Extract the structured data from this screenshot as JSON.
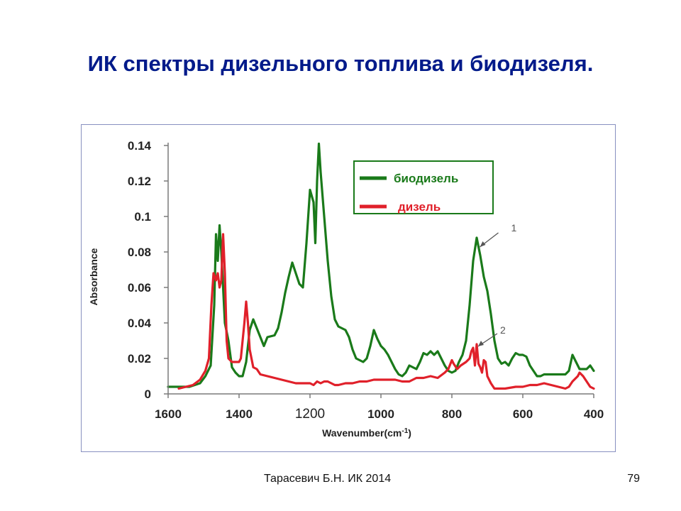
{
  "slide": {
    "title": "ИК спектры дизельного топлива и биодизеля.",
    "footer": "Тарасевич Б.Н. ИК 2014",
    "page_number": "79"
  },
  "colors": {
    "title": "#001a8a",
    "biodiesel": "#1a7a1a",
    "diesel": "#e0202a",
    "frame": "#8890c0",
    "highlight_tick": "#2244aa"
  },
  "chart_data": {
    "type": "line",
    "xlabel": "Wavenumber(cm",
    "xlabel_sup": "-1",
    "xlabel_end": ")",
    "ylabel": "Absorbance",
    "xlim": [
      1600,
      400
    ],
    "ylim": [
      0,
      0.14
    ],
    "x_reversed": true,
    "xticks": [
      1600,
      1400,
      1200,
      1000,
      800,
      600,
      400
    ],
    "xtick_labels": [
      "1600",
      "1400",
      "1200",
      "1000",
      "800",
      "600",
      "400"
    ],
    "highlighted_xtick": "1200",
    "yticks": [
      0,
      0.02,
      0.04,
      0.06,
      0.08,
      0.1,
      0.12,
      0.14
    ],
    "ytick_labels": [
      "0",
      "0.02",
      "0.04",
      "0.06",
      "0.08",
      "0.1",
      "0.12",
      "0.14"
    ],
    "legend_position": "top-right",
    "series": [
      {
        "name": "биодизель",
        "color": "#1a7a1a",
        "annotation": "1",
        "points": [
          [
            1600,
            0.004
          ],
          [
            1580,
            0.004
          ],
          [
            1540,
            0.004
          ],
          [
            1510,
            0.006
          ],
          [
            1495,
            0.01
          ],
          [
            1480,
            0.016
          ],
          [
            1470,
            0.05
          ],
          [
            1465,
            0.09
          ],
          [
            1460,
            0.075
          ],
          [
            1455,
            0.095
          ],
          [
            1450,
            0.08
          ],
          [
            1445,
            0.06
          ],
          [
            1440,
            0.04
          ],
          [
            1430,
            0.03
          ],
          [
            1420,
            0.015
          ],
          [
            1410,
            0.012
          ],
          [
            1400,
            0.01
          ],
          [
            1390,
            0.01
          ],
          [
            1380,
            0.018
          ],
          [
            1370,
            0.036
          ],
          [
            1360,
            0.042
          ],
          [
            1350,
            0.037
          ],
          [
            1340,
            0.032
          ],
          [
            1330,
            0.027
          ],
          [
            1320,
            0.032
          ],
          [
            1300,
            0.033
          ],
          [
            1290,
            0.037
          ],
          [
            1280,
            0.046
          ],
          [
            1270,
            0.057
          ],
          [
            1260,
            0.066
          ],
          [
            1250,
            0.074
          ],
          [
            1240,
            0.068
          ],
          [
            1230,
            0.062
          ],
          [
            1220,
            0.06
          ],
          [
            1210,
            0.085
          ],
          [
            1200,
            0.115
          ],
          [
            1190,
            0.108
          ],
          [
            1185,
            0.085
          ],
          [
            1180,
            0.12
          ],
          [
            1175,
            0.141
          ],
          [
            1170,
            0.125
          ],
          [
            1160,
            0.1
          ],
          [
            1150,
            0.075
          ],
          [
            1140,
            0.055
          ],
          [
            1130,
            0.042
          ],
          [
            1120,
            0.038
          ],
          [
            1100,
            0.036
          ],
          [
            1090,
            0.032
          ],
          [
            1080,
            0.025
          ],
          [
            1070,
            0.02
          ],
          [
            1060,
            0.019
          ],
          [
            1050,
            0.018
          ],
          [
            1040,
            0.02
          ],
          [
            1030,
            0.027
          ],
          [
            1020,
            0.036
          ],
          [
            1010,
            0.031
          ],
          [
            1000,
            0.027
          ],
          [
            990,
            0.025
          ],
          [
            980,
            0.022
          ],
          [
            970,
            0.018
          ],
          [
            960,
            0.014
          ],
          [
            950,
            0.011
          ],
          [
            940,
            0.01
          ],
          [
            930,
            0.012
          ],
          [
            920,
            0.016
          ],
          [
            910,
            0.015
          ],
          [
            900,
            0.014
          ],
          [
            890,
            0.018
          ],
          [
            880,
            0.023
          ],
          [
            870,
            0.022
          ],
          [
            860,
            0.024
          ],
          [
            850,
            0.022
          ],
          [
            840,
            0.024
          ],
          [
            830,
            0.02
          ],
          [
            820,
            0.016
          ],
          [
            810,
            0.013
          ],
          [
            800,
            0.012
          ],
          [
            790,
            0.013
          ],
          [
            780,
            0.018
          ],
          [
            770,
            0.022
          ],
          [
            760,
            0.03
          ],
          [
            750,
            0.05
          ],
          [
            740,
            0.075
          ],
          [
            730,
            0.088
          ],
          [
            720,
            0.078
          ],
          [
            710,
            0.066
          ],
          [
            700,
            0.058
          ],
          [
            690,
            0.045
          ],
          [
            680,
            0.03
          ],
          [
            670,
            0.02
          ],
          [
            660,
            0.017
          ],
          [
            650,
            0.018
          ],
          [
            640,
            0.016
          ],
          [
            630,
            0.02
          ],
          [
            620,
            0.023
          ],
          [
            610,
            0.022
          ],
          [
            600,
            0.022
          ],
          [
            590,
            0.021
          ],
          [
            580,
            0.016
          ],
          [
            570,
            0.013
          ],
          [
            560,
            0.01
          ],
          [
            550,
            0.01
          ],
          [
            540,
            0.011
          ],
          [
            500,
            0.011
          ],
          [
            480,
            0.011
          ],
          [
            470,
            0.013
          ],
          [
            460,
            0.022
          ],
          [
            450,
            0.018
          ],
          [
            440,
            0.014
          ],
          [
            420,
            0.014
          ],
          [
            410,
            0.016
          ],
          [
            400,
            0.013
          ]
        ]
      },
      {
        "name": "дизель",
        "color": "#e0202a",
        "annotation": "2",
        "points": [
          [
            1570,
            0.003
          ],
          [
            1550,
            0.004
          ],
          [
            1530,
            0.005
          ],
          [
            1510,
            0.008
          ],
          [
            1495,
            0.013
          ],
          [
            1485,
            0.02
          ],
          [
            1478,
            0.05
          ],
          [
            1472,
            0.068
          ],
          [
            1465,
            0.064
          ],
          [
            1460,
            0.068
          ],
          [
            1455,
            0.06
          ],
          [
            1450,
            0.064
          ],
          [
            1445,
            0.09
          ],
          [
            1440,
            0.068
          ],
          [
            1435,
            0.03
          ],
          [
            1430,
            0.02
          ],
          [
            1420,
            0.018
          ],
          [
            1400,
            0.018
          ],
          [
            1395,
            0.02
          ],
          [
            1385,
            0.04
          ],
          [
            1380,
            0.052
          ],
          [
            1375,
            0.04
          ],
          [
            1370,
            0.025
          ],
          [
            1360,
            0.015
          ],
          [
            1350,
            0.014
          ],
          [
            1340,
            0.011
          ],
          [
            1320,
            0.01
          ],
          [
            1300,
            0.009
          ],
          [
            1280,
            0.008
          ],
          [
            1260,
            0.007
          ],
          [
            1240,
            0.006
          ],
          [
            1220,
            0.006
          ],
          [
            1200,
            0.006
          ],
          [
            1190,
            0.005
          ],
          [
            1180,
            0.007
          ],
          [
            1170,
            0.006
          ],
          [
            1160,
            0.007
          ],
          [
            1150,
            0.007
          ],
          [
            1140,
            0.006
          ],
          [
            1130,
            0.005
          ],
          [
            1120,
            0.005
          ],
          [
            1100,
            0.006
          ],
          [
            1080,
            0.006
          ],
          [
            1060,
            0.007
          ],
          [
            1040,
            0.007
          ],
          [
            1020,
            0.008
          ],
          [
            1000,
            0.008
          ],
          [
            980,
            0.008
          ],
          [
            960,
            0.008
          ],
          [
            940,
            0.007
          ],
          [
            920,
            0.007
          ],
          [
            900,
            0.009
          ],
          [
            880,
            0.009
          ],
          [
            860,
            0.01
          ],
          [
            840,
            0.009
          ],
          [
            820,
            0.012
          ],
          [
            810,
            0.014
          ],
          [
            800,
            0.019
          ],
          [
            795,
            0.017
          ],
          [
            785,
            0.014
          ],
          [
            775,
            0.016
          ],
          [
            760,
            0.018
          ],
          [
            750,
            0.02
          ],
          [
            745,
            0.024
          ],
          [
            740,
            0.026
          ],
          [
            735,
            0.016
          ],
          [
            730,
            0.028
          ],
          [
            725,
            0.017
          ],
          [
            720,
            0.015
          ],
          [
            715,
            0.012
          ],
          [
            710,
            0.019
          ],
          [
            705,
            0.018
          ],
          [
            700,
            0.01
          ],
          [
            690,
            0.006
          ],
          [
            680,
            0.003
          ],
          [
            670,
            0.003
          ],
          [
            650,
            0.003
          ],
          [
            620,
            0.004
          ],
          [
            600,
            0.004
          ],
          [
            580,
            0.005
          ],
          [
            560,
            0.005
          ],
          [
            540,
            0.006
          ],
          [
            520,
            0.005
          ],
          [
            500,
            0.004
          ],
          [
            480,
            0.003
          ],
          [
            470,
            0.004
          ],
          [
            460,
            0.007
          ],
          [
            445,
            0.01
          ],
          [
            440,
            0.012
          ],
          [
            430,
            0.01
          ],
          [
            420,
            0.007
          ],
          [
            410,
            0.004
          ],
          [
            400,
            0.003
          ]
        ]
      }
    ]
  }
}
